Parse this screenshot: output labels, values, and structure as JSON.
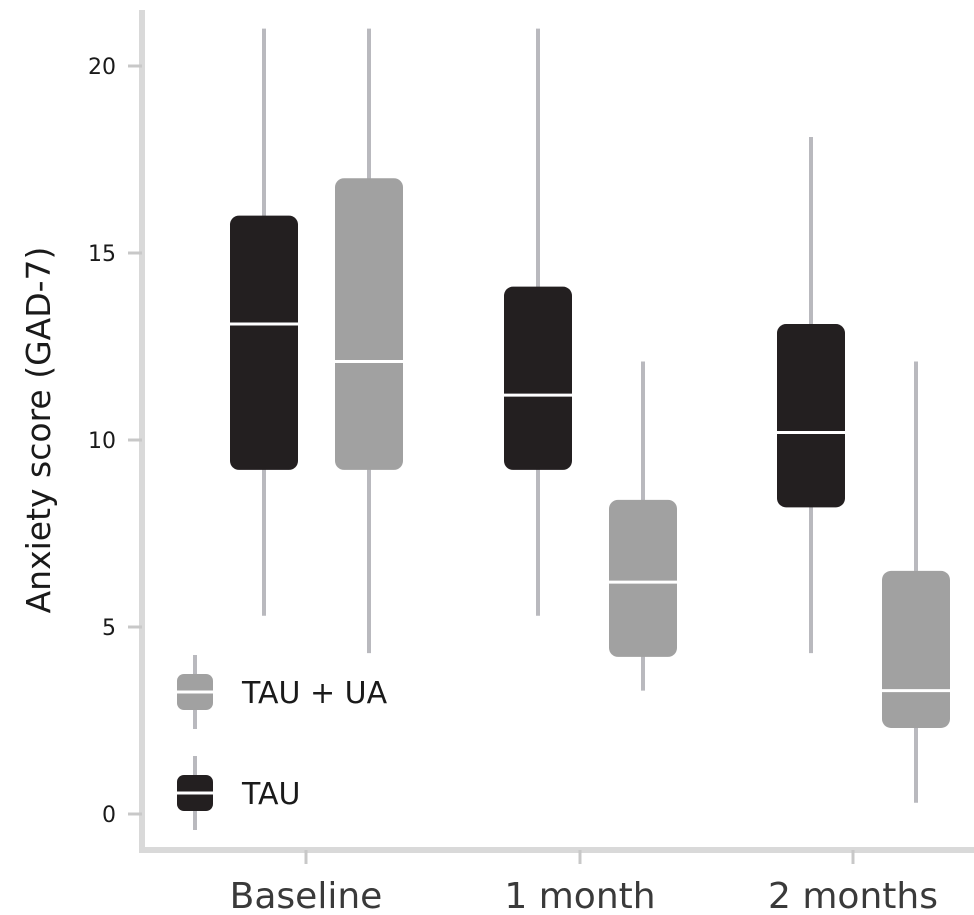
{
  "chart_data": {
    "type": "box",
    "title": "",
    "xlabel": "",
    "ylabel": "Anxiety score (GAD-7)",
    "ylim": [
      -1,
      21
    ],
    "yticks": [
      0,
      5,
      10,
      15,
      20
    ],
    "categories": [
      "Baseline",
      "1 month",
      "2 months"
    ],
    "series": [
      {
        "name": "TAU",
        "color": "#231f20",
        "boxes": [
          {
            "category": "Baseline",
            "whisker_low": 5.3,
            "q1": 9.2,
            "median": 13.1,
            "q3": 16.0,
            "whisker_high": 21.0
          },
          {
            "category": "1 month",
            "whisker_low": 5.3,
            "q1": 9.2,
            "median": 11.2,
            "q3": 14.1,
            "whisker_high": 21.0
          },
          {
            "category": "2 months",
            "whisker_low": 4.3,
            "q1": 8.2,
            "median": 10.2,
            "q3": 13.1,
            "whisker_high": 18.1
          }
        ]
      },
      {
        "name": "TAU + UA",
        "color": "#a1a1a1",
        "boxes": [
          {
            "category": "Baseline",
            "whisker_low": 4.3,
            "q1": 9.2,
            "median": 12.1,
            "q3": 17.0,
            "whisker_high": 21.0
          },
          {
            "category": "1 month",
            "whisker_low": 3.3,
            "q1": 4.2,
            "median": 6.2,
            "q3": 8.4,
            "whisker_high": 12.1
          },
          {
            "category": "2 months",
            "whisker_low": 0.3,
            "q1": 2.3,
            "median": 3.3,
            "q3": 6.5,
            "whisker_high": 12.1
          }
        ]
      }
    ],
    "legend": {
      "placement": "bottom-left",
      "items": [
        {
          "label": "TAU + UA",
          "color": "#a1a1a1"
        },
        {
          "label": "TAU",
          "color": "#231f20"
        }
      ]
    },
    "colors": {
      "whisker": "#b9b9be",
      "axis": "#d9d9d9",
      "tick": "#c8c8c8",
      "median": "#ffffff"
    },
    "grid": false
  }
}
